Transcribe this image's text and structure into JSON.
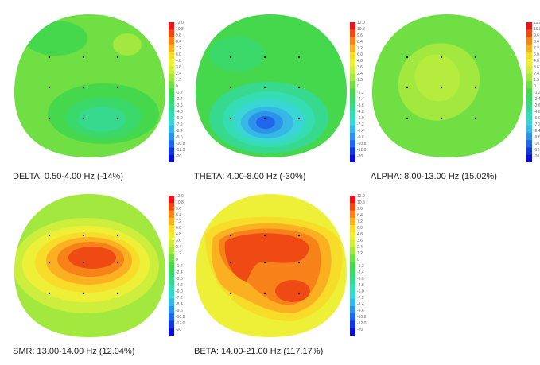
{
  "panels": [
    {
      "id": "delta",
      "caption": "DELTA: 0.50-4.00 Hz (-14%)"
    },
    {
      "id": "theta",
      "caption": "THETA: 4.00-8.00 Hz (-30%)"
    },
    {
      "id": "alpha",
      "caption": "ALPHA: 8.00-13.00 Hz (15.02%)"
    },
    {
      "id": "smr",
      "caption": "SMR: 13.00-14.00 Hz (12.04%)"
    },
    {
      "id": "beta",
      "caption": "BETA: 14.00-21.00 Hz (117.17%)"
    }
  ],
  "scale_ticks": [
    "12.0",
    "10.8",
    "9.6",
    "8.4",
    "7.2",
    "6.0",
    "4.8",
    "3.6",
    "2.4",
    "1.2",
    "0",
    "-1.2",
    "-2.4",
    "-3.6",
    "-4.8",
    "-6.0",
    "-7.2",
    "-8.4",
    "-9.6",
    "-10.8",
    "-12.0",
    "-20"
  ],
  "scale_colors": [
    "#e8141a",
    "#f04a14",
    "#f7821a",
    "#fbb022",
    "#f8dc2a",
    "#eef038",
    "#cdee3c",
    "#a2e83e",
    "#6fdf44",
    "#46d84c",
    "#3ad96a",
    "#36d98e",
    "#36dcb4",
    "#3ad6d6",
    "#36b8e6",
    "#2c92ea",
    "#1f66ea",
    "#1236e0",
    "#0a10d2"
  ]
}
